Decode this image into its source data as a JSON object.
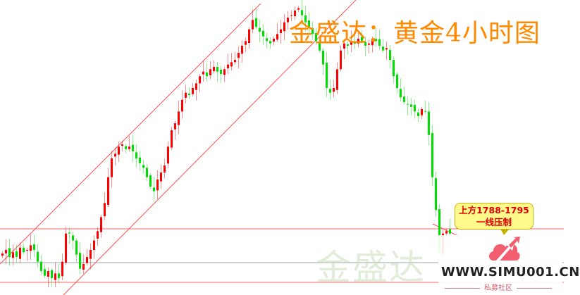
{
  "title": "金盛达：黄金4小时图",
  "watermark": "金盛达",
  "callout": {
    "line1": "上方1788-1795",
    "line2": "一线压制"
  },
  "logo": {
    "url": "WWW.SIMU001.CN",
    "subtitle": "私募社区"
  },
  "colors": {
    "up": "#ff0000",
    "down": "#00dd00",
    "title": "#ff8a00",
    "trendline": "#ff5050",
    "level_red": "#ff6060",
    "level_gray": "#9aa4ad"
  },
  "chart_data": {
    "type": "candlestick",
    "instrument": "黄金",
    "timeframe": "4小时",
    "closes": [
      1779.5,
      1781,
      1778,
      1780,
      1778,
      1782,
      1780,
      1781,
      1783,
      1781,
      1776,
      1772,
      1770,
      1772,
      1769,
      1771,
      1769,
      1776,
      1788,
      1788,
      1785,
      1779,
      1773,
      1775,
      1778,
      1781,
      1785,
      1789,
      1795,
      1801,
      1812,
      1820,
      1822,
      1825,
      1826,
      1824,
      1825,
      1823,
      1820,
      1818,
      1816,
      1812,
      1808,
      1806,
      1811,
      1814,
      1817,
      1825,
      1832,
      1835,
      1840,
      1845,
      1848,
      1847,
      1850,
      1852,
      1855,
      1857,
      1855,
      1858,
      1859,
      1857,
      1856,
      1858,
      1860,
      1861,
      1862,
      1865,
      1868,
      1870,
      1875,
      1879,
      1876,
      1874,
      1872,
      1870,
      1869,
      1871,
      1873,
      1875,
      1878,
      1880,
      1881,
      1883,
      1884,
      1881,
      1878,
      1876,
      1873,
      1870,
      1866,
      1860,
      1850,
      1848,
      1850,
      1858,
      1866,
      1869,
      1868,
      1870,
      1869,
      1871,
      1870,
      1868,
      1869,
      1871,
      1870,
      1868,
      1866,
      1867,
      1862,
      1855,
      1850,
      1846,
      1844,
      1843,
      1842,
      1840,
      1838,
      1841,
      1840,
      1830,
      1812,
      1798,
      1780,
      1788,
      1789,
      1788
    ],
    "resistance_zone": [
      1788,
      1795
    ],
    "horizontal_levels": [
      1790,
      1774,
      1765
    ],
    "grid": false,
    "axes_visible": false
  }
}
